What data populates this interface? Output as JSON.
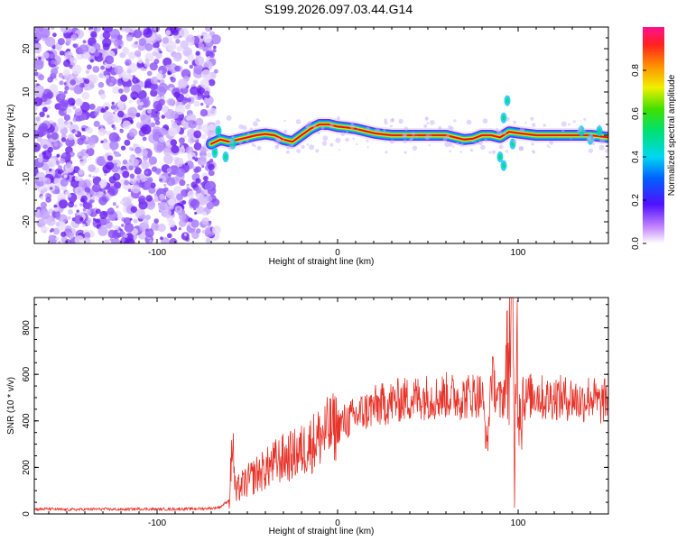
{
  "title": "S199.2026.097.03.44.G14",
  "colors": {
    "snr_line": "#e8332a",
    "ridge_core": "#e01010",
    "noise": "#7a33ee",
    "axis": "#000000"
  },
  "chart_data": [
    {
      "type": "heatmap",
      "name": "spectrogram",
      "xlabel": "Height of straight line (km)",
      "ylabel": "Frequency (Hz)",
      "xlim": [
        -168,
        150
      ],
      "ylim": [
        -25,
        25
      ],
      "xticks": [
        -100,
        0,
        100
      ],
      "xtick_labels": [
        "-100",
        "0",
        "100"
      ],
      "yticks": [
        -20,
        -10,
        0,
        10,
        20
      ],
      "ytick_labels": [
        "-20",
        "-10",
        "0",
        "10",
        "20"
      ],
      "noise_region_x": [
        -168,
        -70
      ],
      "ridge": {
        "x": [
          -70,
          -65,
          -60,
          -55,
          -50,
          -45,
          -40,
          -35,
          -30,
          -25,
          -20,
          -15,
          -10,
          -5,
          0,
          5,
          10,
          15,
          20,
          25,
          30,
          40,
          50,
          60,
          65,
          70,
          75,
          80,
          85,
          90,
          95,
          100,
          110,
          120,
          130,
          140,
          150
        ],
        "freq": [
          -2,
          -1,
          -1.5,
          -1,
          -0.5,
          0,
          0.3,
          0,
          -1,
          -1.5,
          0,
          1.5,
          2.5,
          2.5,
          2,
          1.8,
          1.5,
          1,
          0.5,
          0.2,
          0,
          0,
          0,
          0,
          -0.5,
          -1,
          -0.8,
          0,
          0,
          -0.5,
          0.8,
          0.5,
          0,
          0,
          0,
          0,
          -0.5
        ]
      },
      "colorbar": {
        "label": "Normalized spectral amplitude",
        "range": [
          0,
          1
        ],
        "ticks": [
          0.0,
          0.2,
          0.4,
          0.6,
          0.8
        ],
        "tick_labels": [
          "0.0",
          "0.2",
          "0.4",
          "0.6",
          "0.8"
        ]
      }
    },
    {
      "type": "line",
      "name": "snr",
      "xlabel": "Height of straight line (km)",
      "ylabel": "SNR (10 * v/v)",
      "xlim": [
        -168,
        150
      ],
      "ylim": [
        0,
        930
      ],
      "xticks": [
        -100,
        0,
        100
      ],
      "xtick_labels": [
        "-100",
        "0",
        "100"
      ],
      "yticks": [
        0,
        200,
        400,
        600,
        800
      ],
      "ytick_labels": [
        "0",
        "200",
        "400",
        "600",
        "800"
      ],
      "series": [
        {
          "name": "SNR",
          "x": [
            -168,
            -160,
            -150,
            -140,
            -130,
            -120,
            -110,
            -100,
            -90,
            -80,
            -70,
            -65,
            -60,
            -58,
            -57,
            -56,
            -55,
            -50,
            -45,
            -40,
            -35,
            -30,
            -25,
            -20,
            -15,
            -10,
            -5,
            0,
            5,
            10,
            15,
            20,
            25,
            30,
            35,
            40,
            45,
            50,
            55,
            60,
            65,
            70,
            75,
            80,
            83,
            85,
            88,
            90,
            92,
            95,
            97,
            98,
            99,
            100,
            102,
            105,
            110,
            115,
            120,
            125,
            130,
            135,
            140,
            145,
            150
          ],
          "values": [
            20,
            22,
            18,
            20,
            21,
            19,
            22,
            20,
            21,
            22,
            24,
            30,
            60,
            340,
            120,
            80,
            110,
            140,
            170,
            190,
            220,
            240,
            250,
            270,
            300,
            330,
            360,
            380,
            400,
            420,
            440,
            460,
            470,
            480,
            490,
            495,
            500,
            505,
            500,
            510,
            505,
            500,
            515,
            510,
            280,
            600,
            520,
            480,
            510,
            700,
            920,
            60,
            880,
            520,
            480,
            500,
            520,
            490,
            505,
            495,
            500,
            480,
            510,
            470,
            500
          ]
        }
      ]
    }
  ]
}
